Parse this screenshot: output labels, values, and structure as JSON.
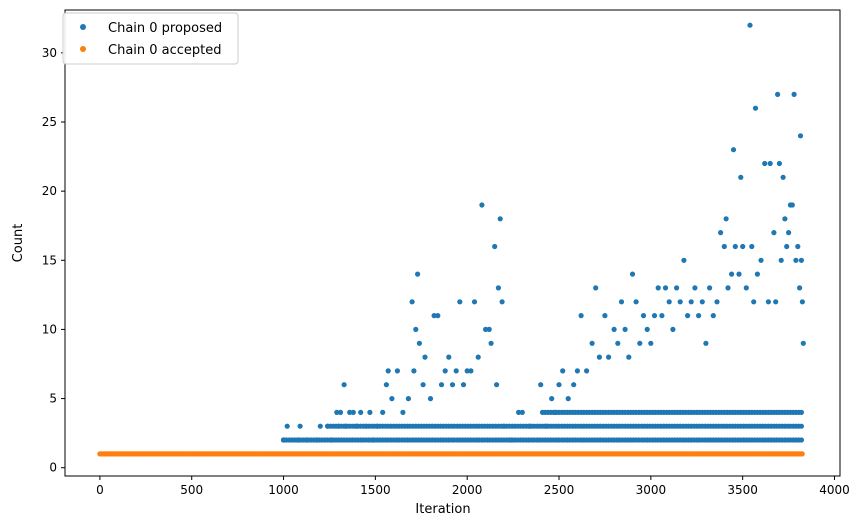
{
  "chart_data": {
    "type": "scatter",
    "title": "",
    "xlabel": "Iteration",
    "ylabel": "Count",
    "xlim": [
      -190,
      4030
    ],
    "ylim": [
      -0.6,
      33.1
    ],
    "xticks": [
      0,
      500,
      1000,
      1500,
      2000,
      2500,
      3000,
      3500,
      4000
    ],
    "yticks": [
      0,
      5,
      10,
      15,
      20,
      25,
      30
    ],
    "grid": false,
    "legend_position": "top-left",
    "series": [
      {
        "name": "Chain 0 proposed",
        "color": "#1f77b4",
        "points": [
          [
            1000,
            2
          ],
          [
            1020,
            3
          ],
          [
            1080,
            2
          ],
          [
            1090,
            3
          ],
          [
            1130,
            2
          ],
          [
            1180,
            2
          ],
          [
            1200,
            3
          ],
          [
            1240,
            3
          ],
          [
            1260,
            2
          ],
          [
            1290,
            4
          ],
          [
            1300,
            3
          ],
          [
            1310,
            4
          ],
          [
            1330,
            6
          ],
          [
            1340,
            3
          ],
          [
            1360,
            4
          ],
          [
            1380,
            4
          ],
          [
            1400,
            3
          ],
          [
            1420,
            4
          ],
          [
            1450,
            3
          ],
          [
            1470,
            4
          ],
          [
            1490,
            2
          ],
          [
            1510,
            3
          ],
          [
            1540,
            4
          ],
          [
            1560,
            6
          ],
          [
            1570,
            7
          ],
          [
            1590,
            5
          ],
          [
            1620,
            7
          ],
          [
            1650,
            4
          ],
          [
            1680,
            5
          ],
          [
            1700,
            12
          ],
          [
            1710,
            7
          ],
          [
            1720,
            10
          ],
          [
            1730,
            14
          ],
          [
            1740,
            9
          ],
          [
            1760,
            6
          ],
          [
            1770,
            8
          ],
          [
            1800,
            5
          ],
          [
            1820,
            11
          ],
          [
            1840,
            11
          ],
          [
            1860,
            6
          ],
          [
            1880,
            7
          ],
          [
            1900,
            8
          ],
          [
            1920,
            6
          ],
          [
            1940,
            7
          ],
          [
            1960,
            12
          ],
          [
            1980,
            6
          ],
          [
            2000,
            7
          ],
          [
            2020,
            7
          ],
          [
            2040,
            12
          ],
          [
            2060,
            8
          ],
          [
            2080,
            19
          ],
          [
            2100,
            10
          ],
          [
            2120,
            10
          ],
          [
            2130,
            9
          ],
          [
            2150,
            16
          ],
          [
            2160,
            6
          ],
          [
            2170,
            13
          ],
          [
            2180,
            18
          ],
          [
            2190,
            12
          ],
          [
            2200,
            3
          ],
          [
            2240,
            2
          ],
          [
            2280,
            4
          ],
          [
            2300,
            4
          ],
          [
            2340,
            3
          ],
          [
            2400,
            6
          ],
          [
            2430,
            3
          ],
          [
            2460,
            5
          ],
          [
            2480,
            4
          ],
          [
            2500,
            6
          ],
          [
            2520,
            7
          ],
          [
            2550,
            5
          ],
          [
            2580,
            6
          ],
          [
            2600,
            7
          ],
          [
            2620,
            11
          ],
          [
            2650,
            7
          ],
          [
            2680,
            9
          ],
          [
            2700,
            13
          ],
          [
            2720,
            8
          ],
          [
            2750,
            11
          ],
          [
            2770,
            8
          ],
          [
            2800,
            10
          ],
          [
            2820,
            9
          ],
          [
            2840,
            12
          ],
          [
            2860,
            10
          ],
          [
            2880,
            8
          ],
          [
            2900,
            14
          ],
          [
            2920,
            12
          ],
          [
            2940,
            9
          ],
          [
            2960,
            11
          ],
          [
            2980,
            10
          ],
          [
            3000,
            9
          ],
          [
            3020,
            11
          ],
          [
            3040,
            13
          ],
          [
            3060,
            11
          ],
          [
            3080,
            13
          ],
          [
            3100,
            12
          ],
          [
            3120,
            10
          ],
          [
            3140,
            13
          ],
          [
            3160,
            12
          ],
          [
            3180,
            15
          ],
          [
            3200,
            11
          ],
          [
            3220,
            12
          ],
          [
            3240,
            13
          ],
          [
            3260,
            11
          ],
          [
            3280,
            12
          ],
          [
            3300,
            9
          ],
          [
            3320,
            13
          ],
          [
            3340,
            11
          ],
          [
            3360,
            12
          ],
          [
            3380,
            17
          ],
          [
            3400,
            16
          ],
          [
            3410,
            18
          ],
          [
            3420,
            13
          ],
          [
            3440,
            14
          ],
          [
            3450,
            23
          ],
          [
            3460,
            16
          ],
          [
            3480,
            14
          ],
          [
            3490,
            21
          ],
          [
            3500,
            16
          ],
          [
            3520,
            13
          ],
          [
            3540,
            32
          ],
          [
            3550,
            16
          ],
          [
            3560,
            12
          ],
          [
            3570,
            26
          ],
          [
            3580,
            14
          ],
          [
            3600,
            15
          ],
          [
            3620,
            22
          ],
          [
            3640,
            12
          ],
          [
            3650,
            22
          ],
          [
            3670,
            17
          ],
          [
            3680,
            12
          ],
          [
            3690,
            27
          ],
          [
            3700,
            22
          ],
          [
            3710,
            15
          ],
          [
            3720,
            21
          ],
          [
            3730,
            18
          ],
          [
            3740,
            16
          ],
          [
            3750,
            17
          ],
          [
            3760,
            19
          ],
          [
            3770,
            19
          ],
          [
            3780,
            27
          ],
          [
            3790,
            15
          ],
          [
            3800,
            16
          ],
          [
            3810,
            13
          ],
          [
            3815,
            24
          ],
          [
            3820,
            15
          ],
          [
            3825,
            12
          ],
          [
            3830,
            9
          ]
        ]
      },
      {
        "name": "Chain 0 accepted",
        "color": "#ff7f0e",
        "x_range": [
          0,
          3830
        ],
        "y": 1
      }
    ]
  }
}
